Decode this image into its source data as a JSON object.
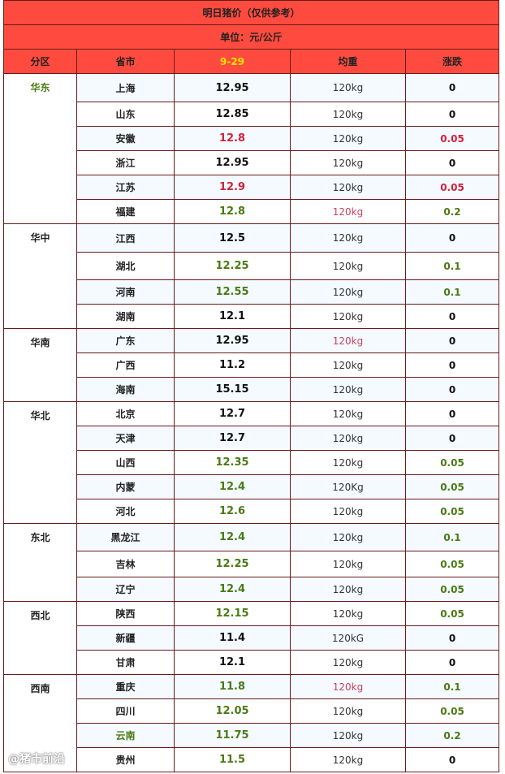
{
  "title": "明日猪价（仅供参考）",
  "unit": "单位：元/公斤",
  "headers": {
    "region": "分区",
    "province": "省市",
    "date": "9-29",
    "weight": "均重",
    "change": "涨跌"
  },
  "colors": {
    "header_bg": "#ff4b3f",
    "date": "#ffe600",
    "up_red": "#d4213b",
    "green": "#4a7a13",
    "border": "#6b1a1a"
  },
  "regions": [
    {
      "name": "华东",
      "color": "green",
      "rows": [
        {
          "province": "上海",
          "price": "12.95",
          "price_color": "black",
          "weight": "120kg",
          "weight_color": "black",
          "change": "0",
          "change_color": "black"
        },
        {
          "province": "山东",
          "price": "12.85",
          "price_color": "black",
          "weight": "120kg",
          "weight_color": "black",
          "change": "0",
          "change_color": "black"
        },
        {
          "province": "安徽",
          "price": "12.8",
          "price_color": "red",
          "weight": "120kg",
          "weight_color": "black",
          "change": "0.05",
          "change_color": "red"
        },
        {
          "province": "浙江",
          "price": "12.95",
          "price_color": "black",
          "weight": "120kg",
          "weight_color": "black",
          "change": "0",
          "change_color": "black"
        },
        {
          "province": "江苏",
          "price": "12.9",
          "price_color": "red",
          "weight": "120kg",
          "weight_color": "black",
          "change": "0.05",
          "change_color": "red"
        },
        {
          "province": "福建",
          "price": "12.8",
          "price_color": "green",
          "weight": "120kg",
          "weight_color": "red",
          "change": "0.2",
          "change_color": "green"
        }
      ]
    },
    {
      "name": "华中",
      "color": "black",
      "rows": [
        {
          "province": "江西",
          "price": "12.5",
          "price_color": "black",
          "weight": "120kg",
          "weight_color": "black",
          "change": "0",
          "change_color": "black"
        },
        {
          "province": "湖北",
          "price": "12.25",
          "price_color": "green",
          "weight": "120kg",
          "weight_color": "black",
          "change": "0.1",
          "change_color": "green"
        },
        {
          "province": "河南",
          "price": "12.55",
          "price_color": "green",
          "weight": "120kg",
          "weight_color": "black",
          "change": "0.1",
          "change_color": "green"
        },
        {
          "province": "湖南",
          "price": "12.1",
          "price_color": "black",
          "weight": "120kg",
          "weight_color": "black",
          "change": "0",
          "change_color": "black"
        }
      ]
    },
    {
      "name": "华南",
      "color": "black",
      "rows": [
        {
          "province": "广东",
          "price": "12.95",
          "price_color": "black",
          "weight": "120kg",
          "weight_color": "red",
          "change": "0",
          "change_color": "black"
        },
        {
          "province": "广西",
          "price": "11.2",
          "price_color": "black",
          "weight": "120kg",
          "weight_color": "black",
          "change": "0",
          "change_color": "black"
        },
        {
          "province": "海南",
          "price": "15.15",
          "price_color": "black",
          "weight": "120kg",
          "weight_color": "black",
          "change": "0",
          "change_color": "black"
        }
      ]
    },
    {
      "name": "华北",
      "color": "black",
      "rows": [
        {
          "province": "北京",
          "price": "12.7",
          "price_color": "black",
          "weight": "120kg",
          "weight_color": "black",
          "change": "0",
          "change_color": "black"
        },
        {
          "province": "天津",
          "price": "12.7",
          "price_color": "black",
          "weight": "120kg",
          "weight_color": "black",
          "change": "0",
          "change_color": "black"
        },
        {
          "province": "山西",
          "price": "12.35",
          "price_color": "green",
          "weight": "120kg",
          "weight_color": "black",
          "change": "0.05",
          "change_color": "green"
        },
        {
          "province": "内蒙",
          "price": "12.4",
          "price_color": "green",
          "weight": "120Kg",
          "weight_color": "black",
          "change": "0.05",
          "change_color": "green"
        },
        {
          "province": "河北",
          "price": "12.6",
          "price_color": "green",
          "weight": "120kg",
          "weight_color": "black",
          "change": "0.05",
          "change_color": "green"
        }
      ]
    },
    {
      "name": "东北",
      "color": "black",
      "rows": [
        {
          "province": "黑龙江",
          "price": "12.4",
          "price_color": "green",
          "weight": "120kg",
          "weight_color": "black",
          "change": "0.1",
          "change_color": "green"
        },
        {
          "province": "吉林",
          "price": "12.25",
          "price_color": "green",
          "weight": "120kg",
          "weight_color": "black",
          "change": "0.05",
          "change_color": "green"
        },
        {
          "province": "辽宁",
          "price": "12.4",
          "price_color": "green",
          "weight": "120kg",
          "weight_color": "black",
          "change": "0.05",
          "change_color": "green"
        }
      ]
    },
    {
      "name": "西北",
      "color": "black",
      "rows": [
        {
          "province": "陕西",
          "price": "12.15",
          "price_color": "green",
          "weight": "120kg",
          "weight_color": "black",
          "change": "0.05",
          "change_color": "green"
        },
        {
          "province": "新疆",
          "price": "11.4",
          "price_color": "black",
          "weight": "120kG",
          "weight_color": "black",
          "change": "0",
          "change_color": "black"
        },
        {
          "province": "甘肃",
          "price": "12.1",
          "price_color": "black",
          "weight": "120kg",
          "weight_color": "black",
          "change": "0",
          "change_color": "black"
        }
      ]
    },
    {
      "name": "西南",
      "color": "black",
      "rows": [
        {
          "province": "重庆",
          "price": "11.8",
          "price_color": "green",
          "weight": "120kg",
          "weight_color": "red",
          "change": "0.1",
          "change_color": "green"
        },
        {
          "province": "四川",
          "price": "12.05",
          "price_color": "green",
          "weight": "120kg",
          "weight_color": "black",
          "change": "0.05",
          "change_color": "green"
        },
        {
          "province": "云南",
          "province_color": "green",
          "price": "11.75",
          "price_color": "green",
          "weight": "120kg",
          "weight_color": "black",
          "change": "0.2",
          "change_color": "green"
        },
        {
          "province": "贵州",
          "price": "11.5",
          "price_color": "green",
          "weight": "120kg",
          "weight_color": "black",
          "change": "0",
          "change_color": "black"
        }
      ]
    }
  ],
  "watermark": "@猪市前沿"
}
